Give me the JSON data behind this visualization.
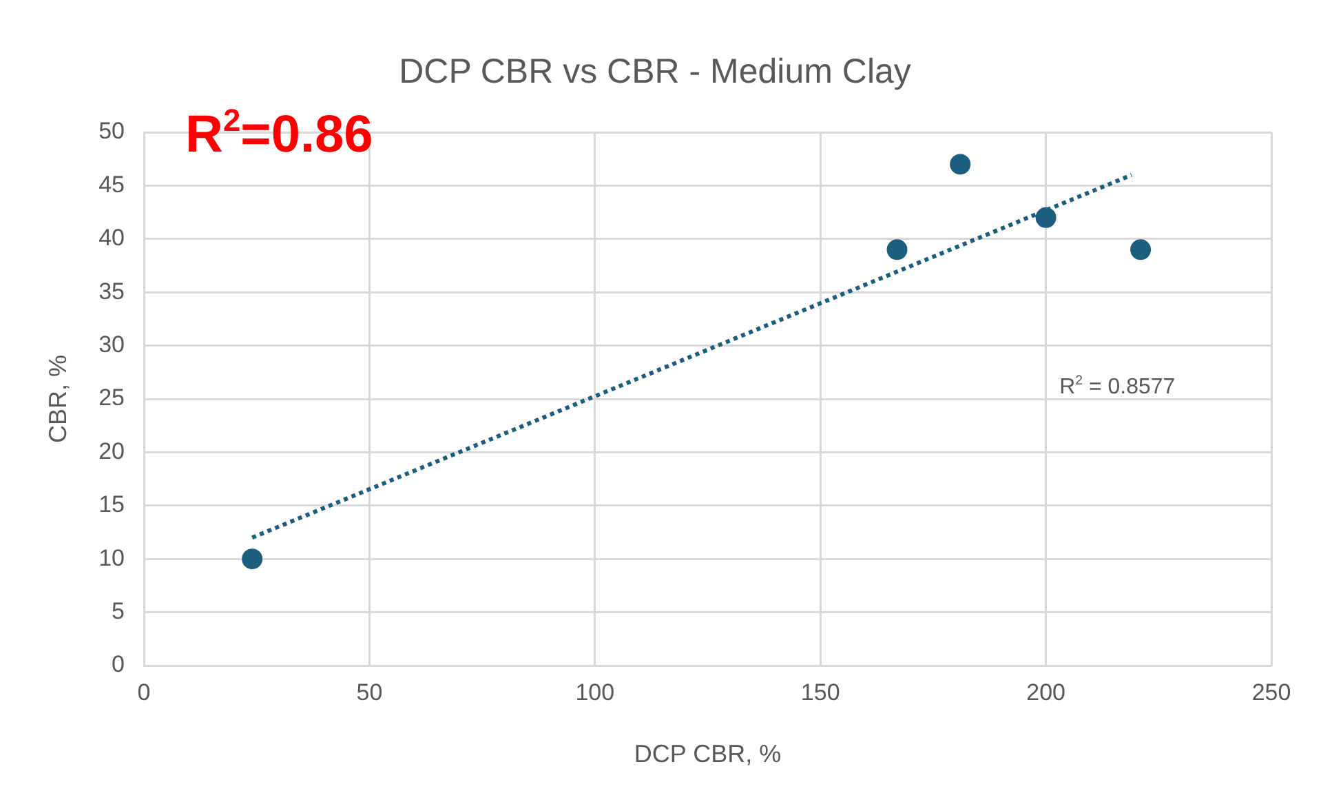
{
  "chart_data": {
    "type": "scatter",
    "title": "DCP CBR vs CBR - Medium Clay",
    "xlabel": "DCP CBR, %",
    "ylabel": "CBR, %",
    "series": [
      {
        "type": "scatter",
        "color": "#1b5e7e",
        "marker": "circle",
        "x": [
          24,
          167,
          181,
          200,
          221
        ],
        "values": [
          10,
          39,
          47,
          42,
          39
        ]
      },
      {
        "type": "line",
        "color": "#1b5e7e",
        "marker": "none",
        "line_style": "dotted",
        "x": [
          24,
          219
        ],
        "values": [
          12,
          46
        ]
      }
    ],
    "xlim": [
      0,
      250
    ],
    "xticks": [
      0,
      50,
      100,
      150,
      200,
      250
    ],
    "ylim": [
      0,
      50
    ],
    "yticks": [
      0,
      5,
      10,
      15,
      20,
      25,
      30,
      35,
      40,
      45,
      50
    ],
    "grid": true,
    "legend": false,
    "annotations": [
      "R$^{2}$=0.86",
      "R$^{2}$ = 0.8577"
    ]
  }
}
